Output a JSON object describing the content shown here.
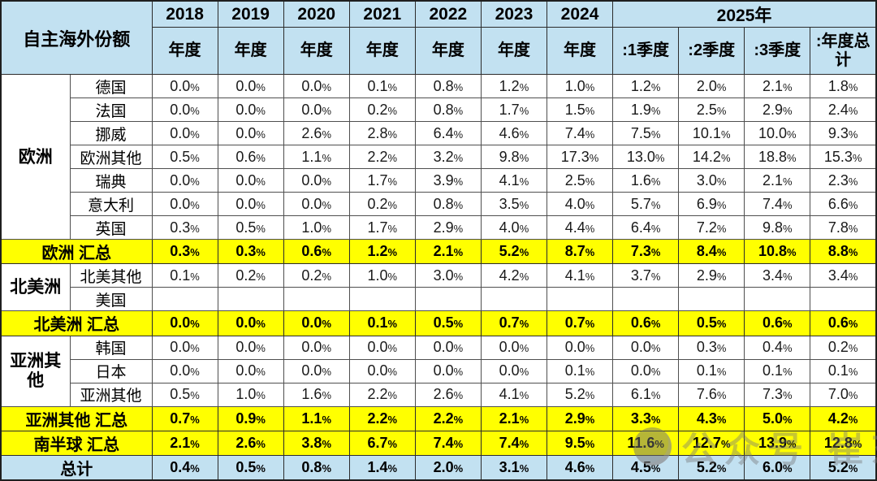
{
  "watermark": {
    "text": "公众号 崔东树"
  },
  "colors": {
    "header_bg": "#C2E1F1",
    "summary_bg": "#FFFF00",
    "total_bg": "#C2E1F1",
    "grid_line": "#4F4F4F",
    "text": "#000000"
  },
  "chart_data": {
    "type": "table",
    "title": "自主海外份额",
    "legend_position": "none",
    "grid": true,
    "year_groups": [
      {
        "label": "2018",
        "span": 1
      },
      {
        "label": "2019",
        "span": 1
      },
      {
        "label": "2020",
        "span": 1
      },
      {
        "label": "2021",
        "span": 1
      },
      {
        "label": "2022",
        "span": 1
      },
      {
        "label": "2023",
        "span": 1
      },
      {
        "label": "2024",
        "span": 1
      },
      {
        "label": "2025年",
        "span": 4
      }
    ],
    "period_headers": [
      "年度",
      "年度",
      "年度",
      "年度",
      "年度",
      "年度",
      "年度",
      ":1季度",
      ":2季度",
      ":3季度",
      ":年度总计"
    ],
    "rows": [
      {
        "type": "data",
        "region": "欧洲",
        "region_rowspan": 7,
        "label": "德国",
        "values": [
          "0.0%",
          "0.0%",
          "0.0%",
          "0.1%",
          "0.8%",
          "1.2%",
          "1.0%",
          "1.2%",
          "2.0%",
          "2.1%",
          "1.8%"
        ]
      },
      {
        "type": "data",
        "label": "法国",
        "values": [
          "0.0%",
          "0.0%",
          "0.0%",
          "0.2%",
          "0.8%",
          "1.7%",
          "1.5%",
          "1.9%",
          "2.5%",
          "2.9%",
          "2.4%"
        ]
      },
      {
        "type": "data",
        "label": "挪威",
        "values": [
          "0.0%",
          "0.0%",
          "2.6%",
          "2.8%",
          "6.4%",
          "4.6%",
          "7.4%",
          "7.5%",
          "10.1%",
          "10.0%",
          "9.3%"
        ]
      },
      {
        "type": "data",
        "label": "欧洲其他",
        "values": [
          "0.5%",
          "0.6%",
          "1.1%",
          "2.2%",
          "3.2%",
          "9.8%",
          "17.3%",
          "13.0%",
          "14.2%",
          "18.8%",
          "15.3%"
        ]
      },
      {
        "type": "data",
        "label": "瑞典",
        "values": [
          "0.0%",
          "0.0%",
          "0.0%",
          "1.7%",
          "3.9%",
          "4.1%",
          "2.5%",
          "1.6%",
          "3.0%",
          "2.1%",
          "2.3%"
        ]
      },
      {
        "type": "data",
        "label": "意大利",
        "values": [
          "0.0%",
          "0.0%",
          "0.0%",
          "0.2%",
          "0.8%",
          "3.5%",
          "4.0%",
          "5.7%",
          "6.9%",
          "7.4%",
          "6.6%"
        ]
      },
      {
        "type": "data",
        "label": "英国",
        "values": [
          "0.3%",
          "0.5%",
          "1.0%",
          "1.7%",
          "2.9%",
          "4.0%",
          "4.4%",
          "6.4%",
          "7.2%",
          "9.8%",
          "7.8%"
        ]
      },
      {
        "type": "summary",
        "label": "欧洲 汇总",
        "values": [
          "0.3%",
          "0.3%",
          "0.6%",
          "1.2%",
          "2.1%",
          "5.2%",
          "8.7%",
          "7.3%",
          "8.4%",
          "10.8%",
          "8.8%"
        ]
      },
      {
        "type": "data",
        "region": "北美洲",
        "region_rowspan": 2,
        "label": "北美其他",
        "values": [
          "0.1%",
          "0.2%",
          "0.2%",
          "1.0%",
          "3.0%",
          "4.2%",
          "4.1%",
          "3.7%",
          "2.9%",
          "3.4%",
          "3.4%"
        ]
      },
      {
        "type": "data",
        "label": "美国",
        "values": [
          "",
          "",
          "",
          "",
          "",
          "",
          "",
          "",
          "",
          "",
          ""
        ]
      },
      {
        "type": "summary",
        "label": "北美洲 汇总",
        "values": [
          "0.0%",
          "0.0%",
          "0.0%",
          "0.1%",
          "0.5%",
          "0.7%",
          "0.7%",
          "0.6%",
          "0.5%",
          "0.6%",
          "0.6%"
        ]
      },
      {
        "type": "data",
        "region": "亚洲其他",
        "region_rowspan": 3,
        "label": "韩国",
        "values": [
          "0.0%",
          "0.0%",
          "0.0%",
          "0.0%",
          "0.0%",
          "0.0%",
          "0.0%",
          "0.0%",
          "0.3%",
          "0.4%",
          "0.2%"
        ]
      },
      {
        "type": "data",
        "label": "日本",
        "values": [
          "0.0%",
          "0.0%",
          "0.0%",
          "0.0%",
          "0.0%",
          "0.0%",
          "0.1%",
          "0.0%",
          "0.1%",
          "0.1%",
          "0.1%"
        ]
      },
      {
        "type": "data",
        "label": "亚洲其他",
        "values": [
          "0.5%",
          "1.0%",
          "1.6%",
          "2.2%",
          "2.6%",
          "4.1%",
          "5.2%",
          "6.1%",
          "7.6%",
          "7.3%",
          "7.0%"
        ]
      },
      {
        "type": "summary",
        "label": "亚洲其他 汇总",
        "values": [
          "0.7%",
          "0.9%",
          "1.1%",
          "2.2%",
          "2.2%",
          "2.1%",
          "2.9%",
          "3.3%",
          "4.3%",
          "5.0%",
          "4.2%"
        ]
      },
      {
        "type": "summary",
        "label": "南半球 汇总",
        "values": [
          "2.1%",
          "2.6%",
          "3.8%",
          "6.7%",
          "7.4%",
          "7.4%",
          "9.5%",
          "11.6%",
          "12.7%",
          "13.9%",
          "12.8%"
        ]
      },
      {
        "type": "total",
        "label": "总计",
        "values": [
          "0.4%",
          "0.5%",
          "0.8%",
          "1.4%",
          "2.0%",
          "3.1%",
          "4.6%",
          "4.5%",
          "5.2%",
          "6.0%",
          "5.2%"
        ]
      }
    ]
  }
}
